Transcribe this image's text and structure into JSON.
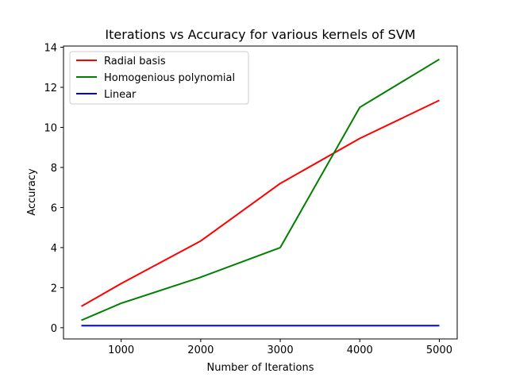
{
  "chart_data": {
    "type": "line",
    "title": "Iterations vs Accuracy for various kernels of SVM",
    "xlabel": "Number of Iterations",
    "ylabel": "Accuracy",
    "xlim": [
      275,
      5225
    ],
    "ylim": [
      -0.56,
      14.06
    ],
    "xticks": [
      1000,
      2000,
      3000,
      4000,
      5000
    ],
    "yticks": [
      0,
      2,
      4,
      6,
      8,
      10,
      12,
      14
    ],
    "grid": false,
    "legend_position": "top-left",
    "x": [
      500,
      1000,
      2000,
      3000,
      4000,
      5000
    ],
    "series": [
      {
        "name": "Radial basis",
        "color": "#ff0000",
        "values": [
          1.07,
          2.2,
          4.33,
          7.2,
          9.45,
          11.35
        ]
      },
      {
        "name": "Homogenious polynomial",
        "color": "#008000",
        "values": [
          0.37,
          1.22,
          2.52,
          4.0,
          11.0,
          13.4
        ]
      },
      {
        "name": "Linear",
        "color": "#0000ff",
        "values": [
          0.1,
          0.1,
          0.1,
          0.1,
          0.1,
          0.1
        ]
      }
    ]
  }
}
